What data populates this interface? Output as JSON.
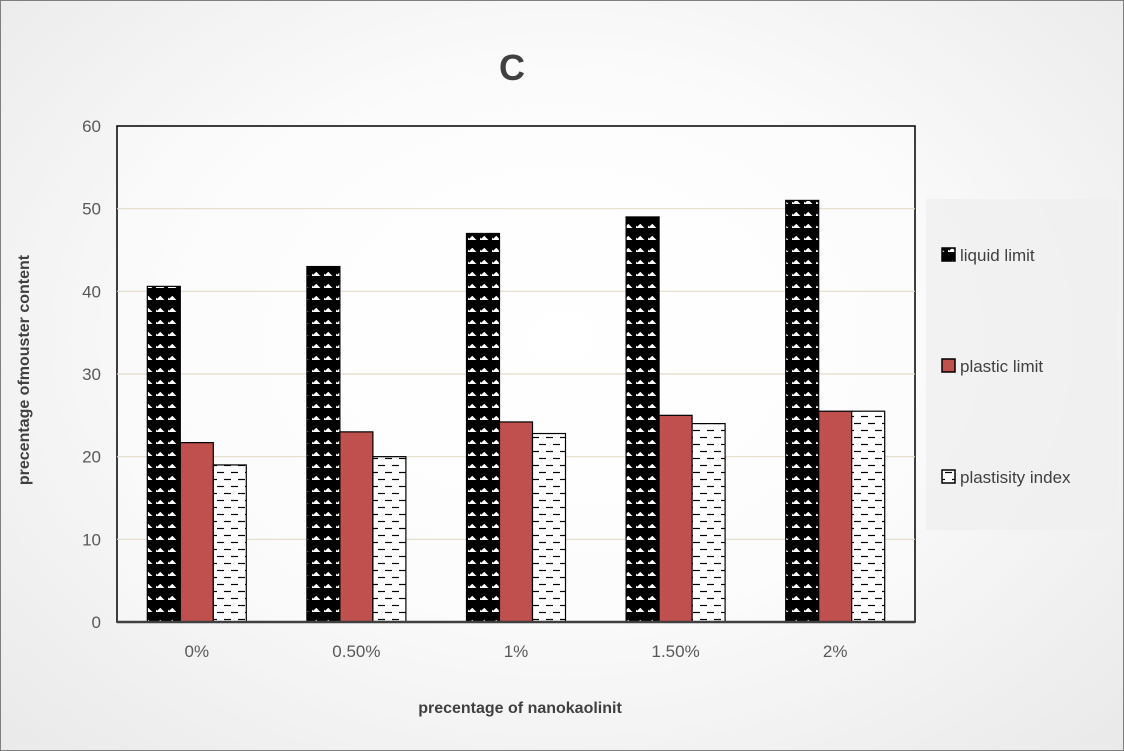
{
  "chart_data": {
    "type": "bar",
    "title": "C",
    "xlabel": "precentage of nanokaolinit",
    "ylabel": "precentage ofmouster content",
    "ylim": [
      0,
      60
    ],
    "yticks": [
      0,
      10,
      20,
      30,
      40,
      50,
      60
    ],
    "grid": true,
    "legend_position": "right",
    "categories": [
      "0%",
      "0.50%",
      "1%",
      "1.50%",
      "2%"
    ],
    "series": [
      {
        "name": "liquid limit",
        "pattern": "diagonal-hatch",
        "color": "#000000",
        "values": [
          40.6,
          43,
          47,
          49,
          51
        ]
      },
      {
        "name": "plastic limit",
        "pattern": "solid",
        "color": "#c0504d",
        "values": [
          21.7,
          23,
          24.2,
          25,
          25.5
        ]
      },
      {
        "name": "plastisity index",
        "pattern": "dashed-horizontal",
        "color": "#000000",
        "values": [
          19,
          20,
          22.8,
          24,
          25.5
        ]
      }
    ]
  }
}
